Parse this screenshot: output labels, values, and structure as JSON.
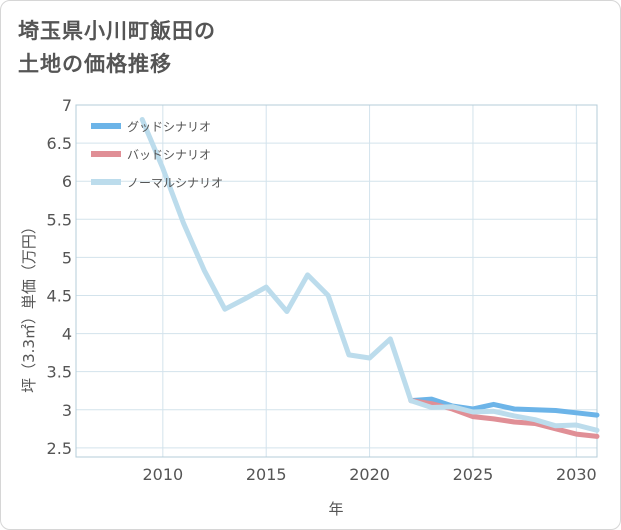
{
  "title_lines": [
    "埼玉県小川町飯田の",
    "土地の価格推移"
  ],
  "chart_data": {
    "type": "line",
    "title": "埼玉県小川町飯田の土地の価格推移",
    "xlabel": "年",
    "ylabel": "坪（3.3㎡）単価（万円）",
    "xlim": [
      2005.8,
      2031
    ],
    "ylim": [
      2.38,
      7
    ],
    "x_ticks": [
      2010,
      2015,
      2020,
      2025,
      2030
    ],
    "x_tick_labels": [
      "2010",
      "2015",
      "2020",
      "2025",
      "2030"
    ],
    "y_ticks": [
      2.5,
      3,
      3.5,
      4,
      4.5,
      5,
      5.5,
      6,
      6.5,
      7
    ],
    "y_tick_labels": [
      "2.5",
      "3",
      "3.5",
      "4",
      "4.5",
      "5",
      "5.5",
      "6",
      "6.5",
      "7"
    ],
    "grid": true,
    "legend_position": "top-left",
    "series": [
      {
        "name": "グッドシナリオ",
        "color": "#6cb4e8",
        "x": [
          2022,
          2023,
          2024,
          2025,
          2026,
          2027,
          2028,
          2029,
          2030,
          2031
        ],
        "y": [
          3.12,
          3.14,
          3.05,
          3.01,
          3.07,
          3.01,
          3.0,
          2.99,
          2.96,
          2.93
        ]
      },
      {
        "name": "バッドシナリオ",
        "color": "#e08f96",
        "x": [
          2022,
          2023,
          2024,
          2025,
          2026,
          2027,
          2028,
          2029,
          2030,
          2031
        ],
        "y": [
          3.12,
          3.08,
          3.01,
          2.91,
          2.88,
          2.84,
          2.82,
          2.75,
          2.68,
          2.65
        ]
      },
      {
        "name": "ノーマルシナリオ",
        "color": "#bcdcec",
        "x": [
          2009,
          2010,
          2011,
          2012,
          2013,
          2014,
          2015,
          2016,
          2017,
          2018,
          2019,
          2020,
          2021,
          2022,
          2023,
          2024,
          2025,
          2026,
          2027,
          2028,
          2029,
          2030,
          2031
        ],
        "y": [
          6.81,
          6.17,
          5.45,
          4.83,
          4.32,
          4.46,
          4.61,
          4.29,
          4.77,
          4.5,
          3.72,
          3.68,
          3.93,
          3.12,
          3.03,
          3.04,
          2.97,
          2.98,
          2.92,
          2.87,
          2.79,
          2.8,
          2.73
        ]
      }
    ]
  }
}
